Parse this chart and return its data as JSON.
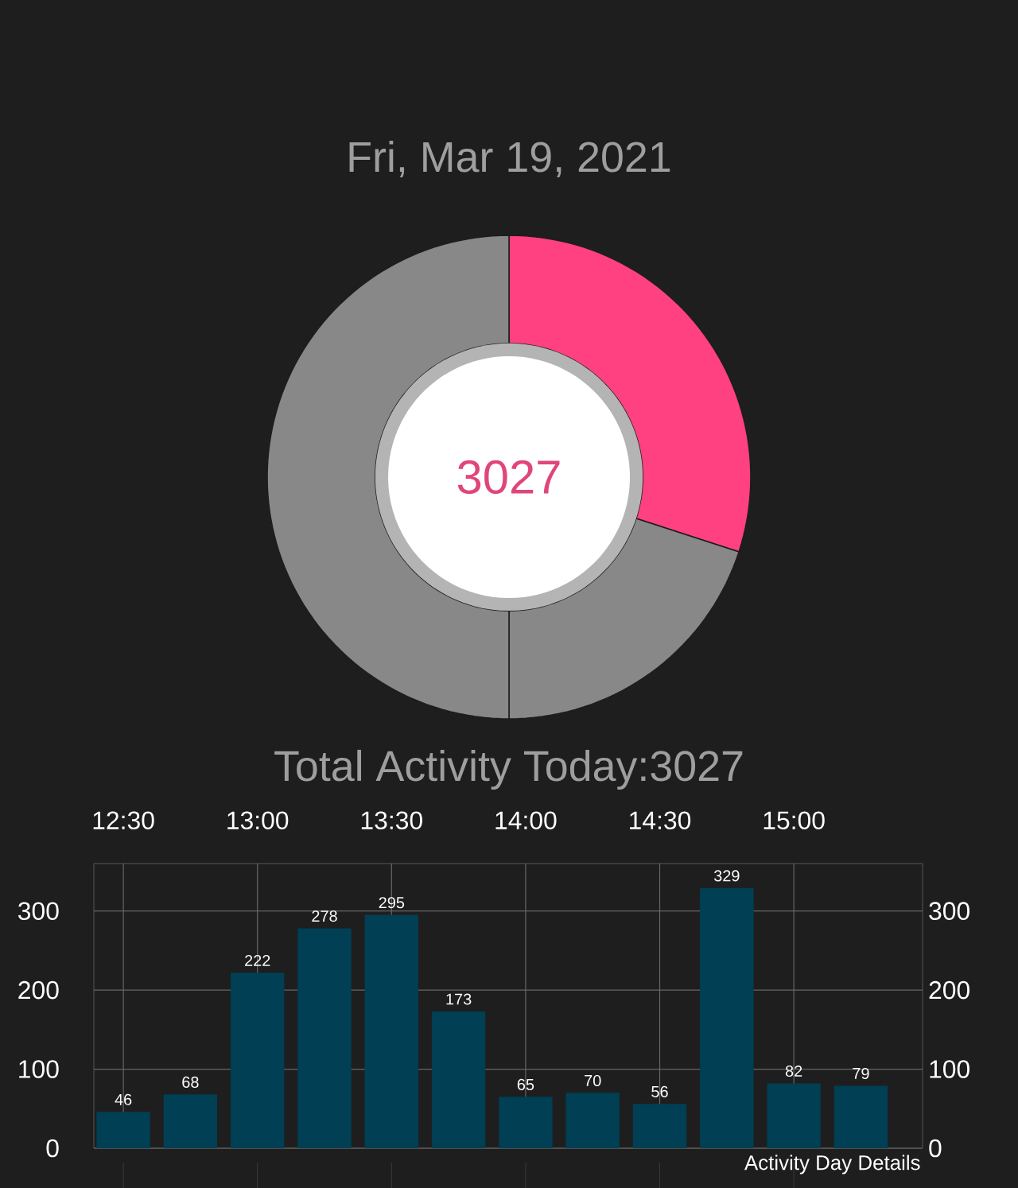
{
  "chart_data": [
    {
      "type": "donut",
      "title": "Fri, Mar 19, 2021",
      "categories": [
        null,
        null,
        null
      ],
      "values": [
        30,
        20,
        50
      ],
      "colors": [
        "#ff4081",
        "#888888",
        "#888888"
      ],
      "annotations": [
        "3027",
        "Total Activity Today:3027"
      ]
    },
    {
      "type": "bar",
      "x": [
        12.5,
        12.75,
        13.0,
        13.25,
        13.5,
        13.75,
        14.0,
        14.25,
        14.5,
        14.75,
        15.0,
        15.25
      ],
      "values": [
        46,
        68,
        222,
        278,
        295,
        173,
        65,
        70,
        56,
        329,
        82,
        79
      ],
      "color": "#003f54",
      "xlim": [
        12.39,
        15.48
      ],
      "xticks": [
        {
          "value": 12.5,
          "label": "12:30"
        },
        {
          "value": 13.0,
          "label": "13:00"
        },
        {
          "value": 13.5,
          "label": "13:30"
        },
        {
          "value": 14.0,
          "label": "14:00"
        },
        {
          "value": 14.5,
          "label": "14:30"
        },
        {
          "value": 15.0,
          "label": "15:00"
        }
      ],
      "ylim": [
        0,
        360
      ],
      "yticks": [
        0,
        100,
        200,
        300
      ],
      "y2lim": [
        0,
        360
      ],
      "y2ticks": [
        0,
        100,
        200,
        300
      ],
      "grid": true,
      "data_labels": true,
      "annotations": [
        "Activity Day Details"
      ]
    }
  ]
}
